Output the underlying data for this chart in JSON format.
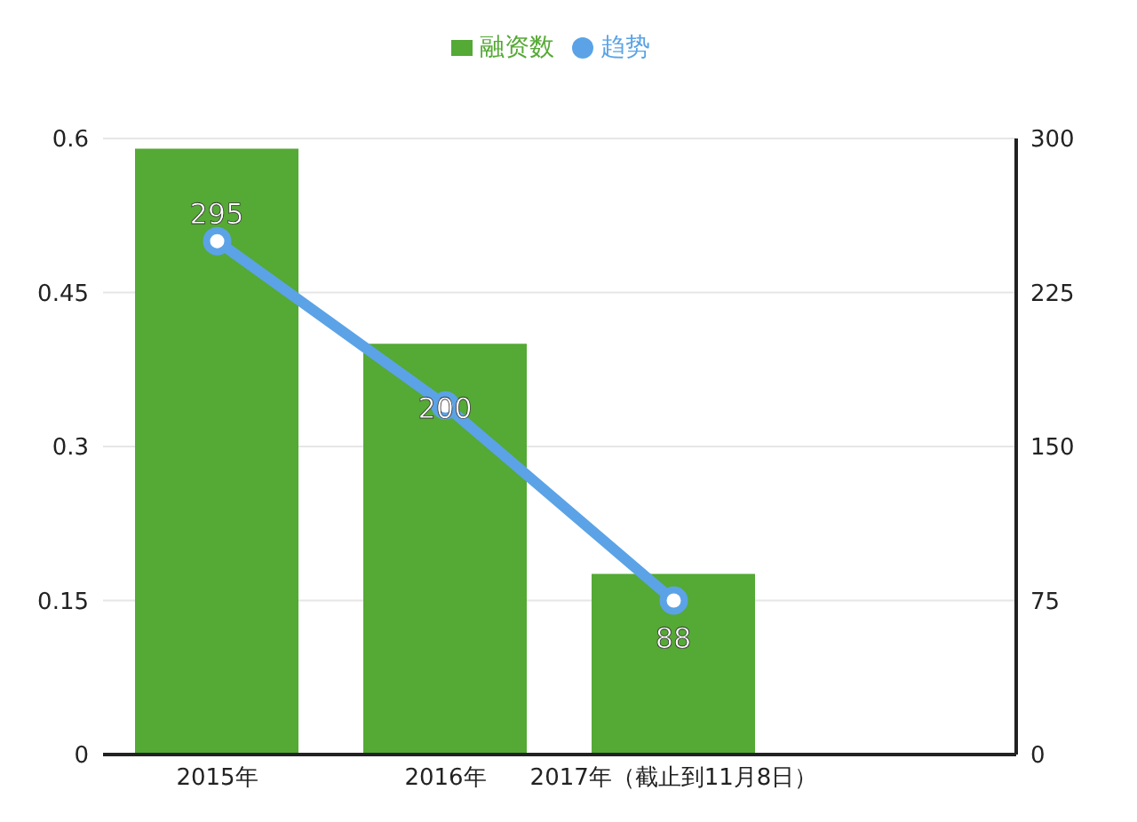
{
  "chart_data": {
    "type": "bar",
    "categories": [
      "2015年",
      "2016年",
      "2017年（截止到11月8日）",
      null
    ],
    "series": [
      {
        "name": "趋势",
        "type": "line",
        "color": "#5ba3e6",
        "values": [
          0.5,
          0.34,
          0.15,
          null
        ]
      },
      {
        "name": "融资数",
        "axis": "y2",
        "color": "#55a935",
        "values": [
          295,
          200,
          88,
          null
        ],
        "value_labels": [
          "295",
          "200",
          "88",
          null
        ]
      }
    ],
    "ylim": [
      0,
      0.6
    ],
    "yticks": [
      0,
      0.15,
      0.3,
      0.45,
      0.6
    ],
    "y2lim": [
      0,
      300
    ],
    "y2ticks": [
      0,
      75,
      150,
      225,
      300
    ],
    "grid": "y",
    "legend": "top",
    "marker": "circle"
  }
}
